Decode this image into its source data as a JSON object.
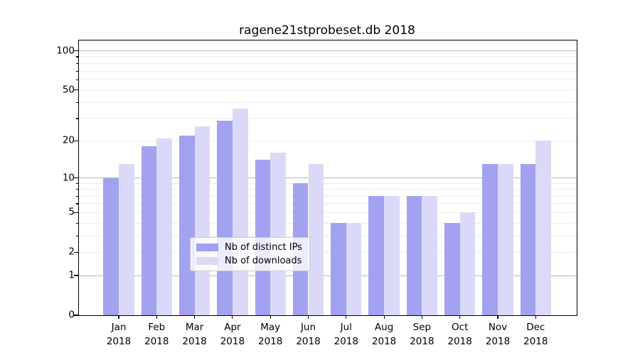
{
  "chart_data": {
    "type": "bar",
    "title": "ragene21stprobeset.db 2018",
    "categories": [
      "Jan",
      "Feb",
      "Mar",
      "Apr",
      "May",
      "Jun",
      "Jul",
      "Aug",
      "Sep",
      "Oct",
      "Nov",
      "Dec"
    ],
    "category_year": "2018",
    "series": [
      {
        "name": "Nb of distinct IPs",
        "color": "#a2a2f1",
        "values": [
          10,
          18,
          22,
          29,
          14,
          9,
          4,
          7,
          7,
          4,
          13,
          13
        ]
      },
      {
        "name": "Nb of downloads",
        "color": "#dadaf8",
        "values": [
          13,
          21,
          26,
          36,
          16,
          13,
          4,
          7,
          7,
          5,
          13,
          20
        ]
      }
    ],
    "yscale": "log1p",
    "ylim": [
      0,
      120
    ],
    "ytick_labels": [
      "100",
      "50",
      "20",
      "10",
      "5",
      "2",
      "1",
      "0"
    ],
    "yticks": [
      100,
      50,
      20,
      10,
      5,
      2,
      1,
      0
    ],
    "gridlines": [
      1,
      2,
      3,
      4,
      5,
      6,
      7,
      8,
      9,
      10,
      20,
      30,
      40,
      50,
      60,
      70,
      80,
      90,
      100
    ],
    "major_gridlines": [
      1,
      10,
      100
    ],
    "grid": true,
    "legend_position": "lower center",
    "colors": {
      "grid_minor": "#ededed",
      "grid_major": "#b9b9b9",
      "axis": "#000000",
      "legend_border": "#cccccc"
    }
  }
}
